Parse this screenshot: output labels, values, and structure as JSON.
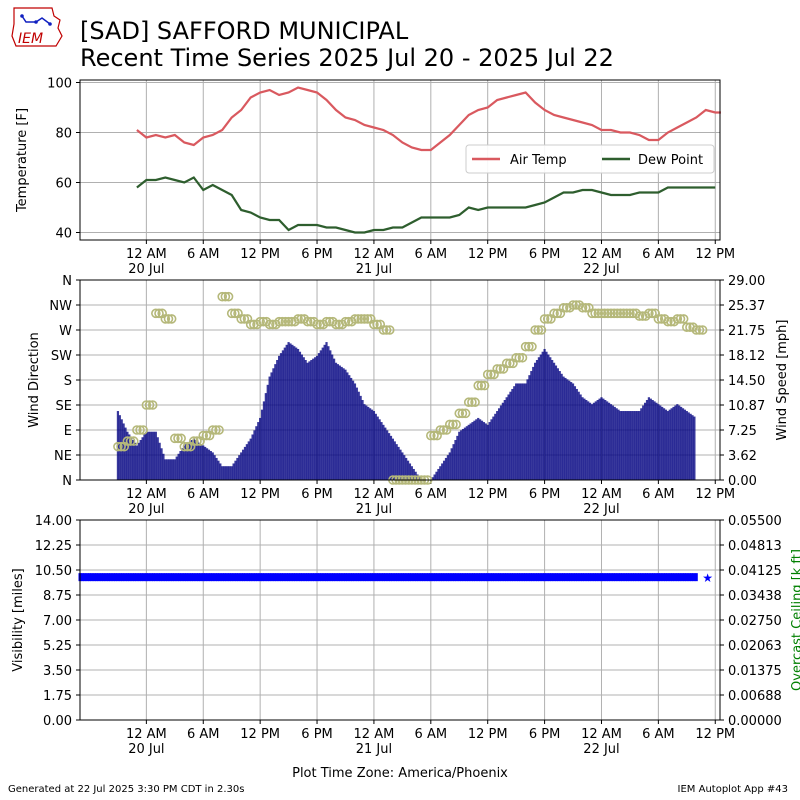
{
  "header": {
    "title_line1": "[SAD] SAFFORD MUNICIPAL",
    "title_line2": "Recent Time Series 2025 Jul 20 - 2025 Jul 22",
    "logo_text": "IEM"
  },
  "footer": {
    "generated": "Generated at 22 Jul 2025 3:30 PM CDT in 2.30s",
    "app": "IEM Autoplot App #43"
  },
  "time_axis": {
    "tick_labels": [
      "12 AM",
      "6 AM",
      "12 PM",
      "6 PM",
      "12 AM",
      "6 AM",
      "12 PM",
      "6 PM",
      "12 AM",
      "6 AM",
      "12 PM"
    ],
    "day_labels": [
      "20 Jul",
      "21 Jul",
      "22 Jul"
    ],
    "xlabel": "Plot Time Zone: America/Phoenix"
  },
  "colors": {
    "air_temp": "#d9595f",
    "dew_point": "#2e5e2e",
    "wind_speed_bar": "#000080",
    "wind_dir_marker": "#b5b87a",
    "visibility": "#0000ff",
    "ceiling_axis": "#008000",
    "grid": "#b0b0b0"
  },
  "chart_data": [
    {
      "type": "line",
      "ylabel": "Temperature [F]",
      "ylim": [
        37,
        101
      ],
      "yticks": [
        40,
        60,
        80,
        100
      ],
      "xlim_hours": [
        -7,
        60.5
      ],
      "grid": true,
      "legend_position": "right",
      "x_hours": [
        -1,
        0,
        1,
        2,
        3,
        4,
        5,
        6,
        7,
        8,
        9,
        10,
        11,
        12,
        13,
        14,
        15,
        16,
        17,
        18,
        19,
        20,
        21,
        22,
        23,
        24,
        25,
        26,
        27,
        28,
        29,
        30,
        31,
        32,
        33,
        34,
        35,
        36,
        37,
        38,
        39,
        40,
        41,
        42,
        43,
        44,
        45,
        46,
        47,
        48,
        49,
        50,
        51,
        52,
        53,
        54,
        55,
        56,
        57,
        58,
        59,
        60
      ],
      "series": [
        {
          "name": "Air Temp",
          "values": [
            81,
            78,
            79,
            78,
            79,
            76,
            75,
            78,
            79,
            81,
            86,
            89,
            94,
            96,
            97,
            95,
            96,
            98,
            97,
            96,
            93,
            89,
            86,
            85,
            83,
            82,
            81,
            79,
            76,
            74,
            73,
            73,
            76,
            79,
            83,
            87,
            89,
            90,
            93,
            94,
            95,
            96,
            92,
            89,
            87,
            86,
            85,
            84,
            83,
            81,
            81,
            80,
            80,
            79,
            77,
            77,
            80,
            82,
            84,
            86,
            89,
            88
          ],
          "end_value": 88
        },
        {
          "name": "Dew Point",
          "values": [
            58,
            61,
            61,
            62,
            61,
            60,
            62,
            57,
            59,
            57,
            55,
            49,
            48,
            46,
            45,
            45,
            41,
            43,
            43,
            43,
            42,
            42,
            41,
            40,
            40,
            41,
            41,
            42,
            42,
            44,
            46,
            46,
            46,
            46,
            47,
            50,
            49,
            50,
            50,
            50,
            50,
            50,
            51,
            52,
            54,
            56,
            56,
            57,
            57,
            56,
            55,
            55,
            55,
            56,
            56,
            56,
            58,
            58,
            58,
            58,
            58,
            58
          ]
        }
      ]
    },
    {
      "type": "bar",
      "ylabel": "Wind Direction",
      "y2label": "Wind Speed [mph]",
      "yticks_left": [
        "N",
        "NE",
        "E",
        "SE",
        "S",
        "SW",
        "W",
        "NW",
        "N"
      ],
      "yticks_right": [
        "0.00",
        "3.62",
        "7.25",
        "10.87",
        "14.50",
        "18.12",
        "21.75",
        "25.37",
        "29.00"
      ],
      "ylim_speed": [
        0,
        29
      ],
      "grid": true,
      "x_hours": [
        -3,
        -2,
        -1,
        0,
        1,
        2,
        3,
        4,
        5,
        6,
        7,
        8,
        9,
        10,
        11,
        12,
        13,
        14,
        15,
        16,
        17,
        18,
        19,
        20,
        21,
        22,
        23,
        24,
        25,
        26,
        27,
        28,
        29,
        30,
        31,
        32,
        33,
        34,
        35,
        36,
        37,
        38,
        39,
        40,
        41,
        42,
        43,
        44,
        45,
        46,
        47,
        48,
        49,
        50,
        51,
        52,
        53,
        54,
        55,
        56,
        57,
        58
      ],
      "series": [
        {
          "name": "wind_speed_mph",
          "values": [
            10,
            7,
            5,
            7,
            7,
            3,
            3,
            5,
            6,
            5,
            4,
            2,
            2,
            4,
            6,
            9,
            15,
            18,
            20,
            19,
            17,
            18,
            20,
            17,
            16,
            14,
            11,
            10,
            8,
            6,
            4,
            2,
            0,
            0,
            2,
            4,
            7,
            8,
            9,
            8,
            10,
            12,
            14,
            14,
            17,
            19,
            17,
            15,
            14,
            12,
            11,
            12,
            11,
            10,
            10,
            10,
            12,
            11,
            10,
            11,
            10,
            9
          ]
        },
        {
          "name": "wind_direction_deg",
          "values": [
            60,
            70,
            90,
            135,
            300,
            290,
            75,
            60,
            70,
            80,
            90,
            330,
            300,
            290,
            280,
            285,
            280,
            285,
            285,
            290,
            285,
            280,
            285,
            280,
            285,
            290,
            290,
            280,
            270,
            0,
            0,
            0,
            0,
            80,
            90,
            100,
            120,
            140,
            170,
            190,
            200,
            210,
            220,
            240,
            270,
            290,
            300,
            310,
            315,
            310,
            300,
            300,
            300,
            300,
            300,
            295,
            300,
            290,
            285,
            290,
            275,
            270
          ]
        }
      ]
    },
    {
      "type": "scatter",
      "ylabel": "Visibility [miles]",
      "y2label": "Overcast Ceiling [k ft]",
      "yticks_left": [
        "0.00",
        "1.75",
        "3.50",
        "5.25",
        "7.00",
        "8.75",
        "10.50",
        "12.25",
        "14.00"
      ],
      "yticks_right": [
        "0.00000",
        "0.00688",
        "0.01375",
        "0.02063",
        "0.02750",
        "0.03438",
        "0.04125",
        "0.04813",
        "0.05500"
      ],
      "ylim": [
        0,
        14
      ],
      "grid": true,
      "series": [
        {
          "name": "visibility",
          "x_hours_range": [
            -7,
            58
          ],
          "value": 10
        }
      ]
    }
  ]
}
